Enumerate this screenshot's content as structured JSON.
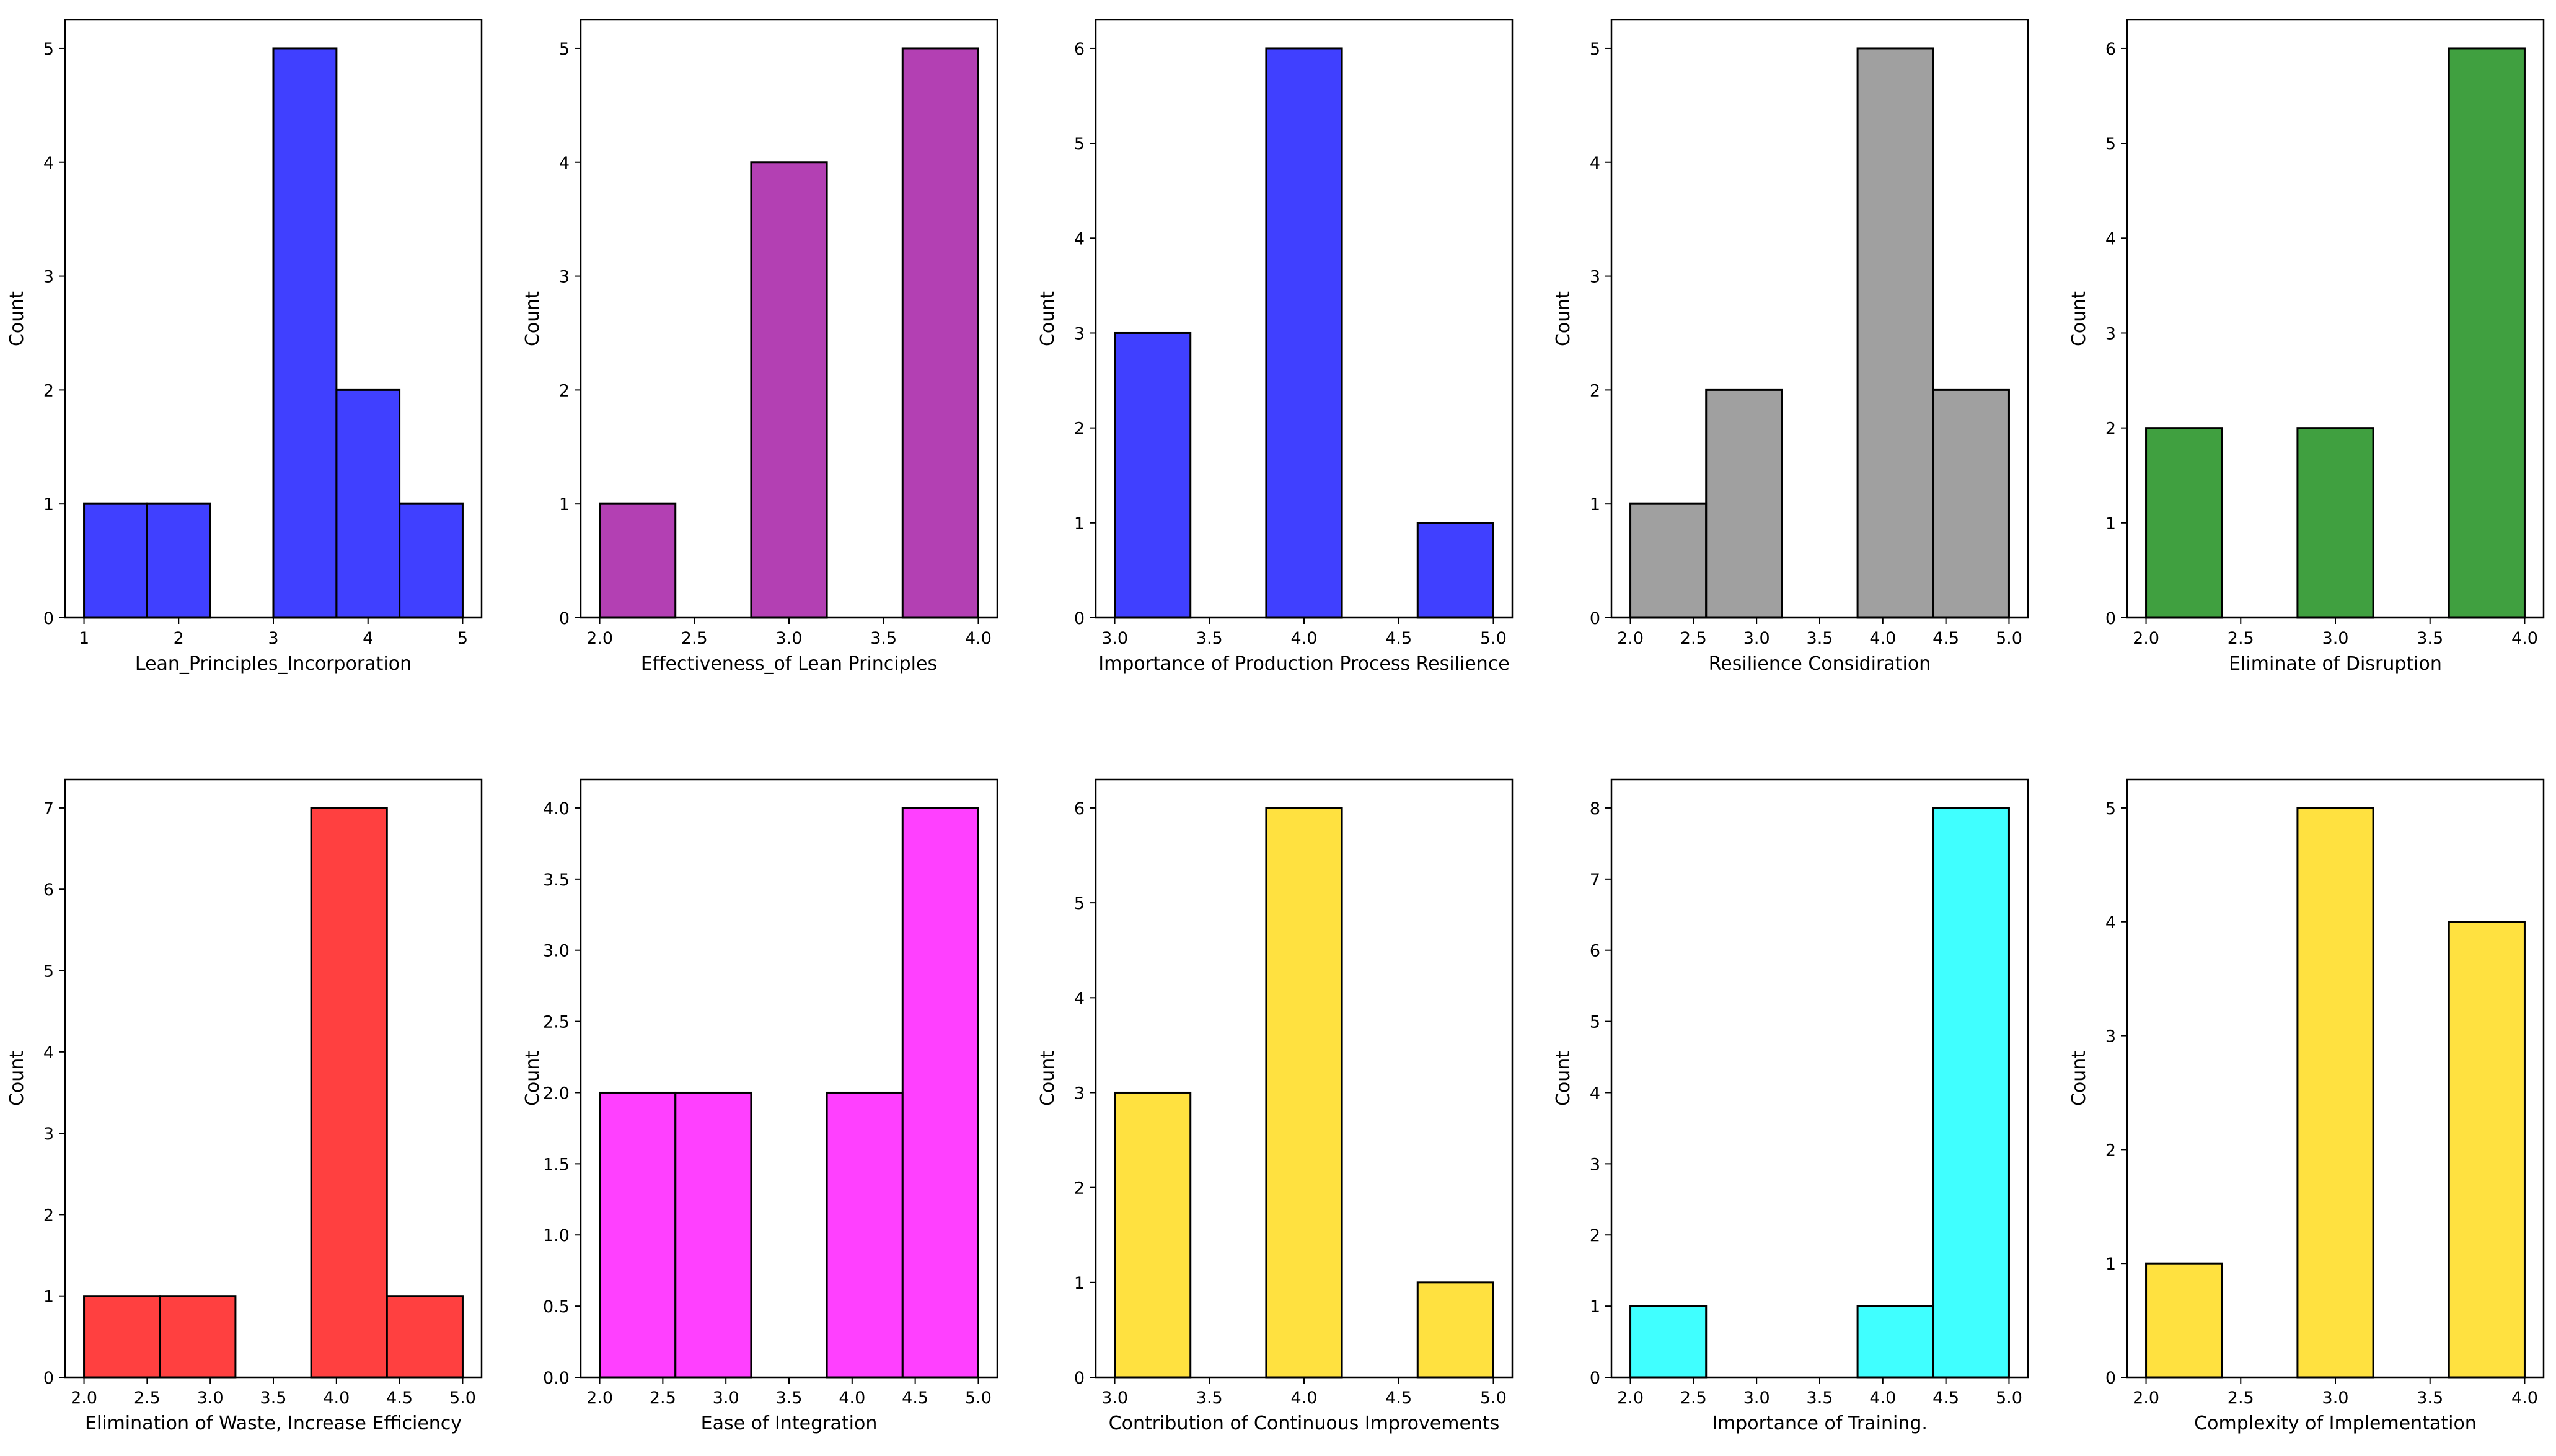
{
  "chart_data": [
    {
      "type": "bar",
      "xlabel": "Lean_Principles_Incorporation",
      "ylabel": "Count",
      "color": "#0000FF",
      "xlim": [
        0.8,
        5.2
      ],
      "ylim": [
        0,
        5.25
      ],
      "xticks": [
        1,
        2,
        3,
        4,
        5
      ],
      "xtick_labels": [
        "1",
        "2",
        "3",
        "4",
        "5"
      ],
      "yticks": [
        0,
        1,
        2,
        3,
        4,
        5
      ],
      "ytick_labels": [
        "0",
        "1",
        "2",
        "3",
        "4",
        "5"
      ],
      "bins": [
        [
          1.0,
          1.667
        ],
        [
          1.667,
          2.333
        ],
        [
          3.0,
          3.667
        ],
        [
          3.667,
          4.333
        ],
        [
          4.333,
          5.0
        ]
      ],
      "values": [
        1,
        1,
        5,
        2,
        1
      ]
    },
    {
      "type": "bar",
      "xlabel": "Effectiveness_of Lean Principles",
      "ylabel": "Count",
      "color": "#990099",
      "xlim": [
        1.9,
        4.1
      ],
      "ylim": [
        0,
        5.25
      ],
      "xticks": [
        2.0,
        2.5,
        3.0,
        3.5,
        4.0
      ],
      "xtick_labels": [
        "2.0",
        "2.5",
        "3.0",
        "3.5",
        "4.0"
      ],
      "yticks": [
        0,
        1,
        2,
        3,
        4,
        5
      ],
      "ytick_labels": [
        "0",
        "1",
        "2",
        "3",
        "4",
        "5"
      ],
      "bins": [
        [
          2.0,
          2.4
        ],
        [
          2.8,
          3.2
        ],
        [
          3.6,
          4.0
        ]
      ],
      "values": [
        1,
        4,
        5
      ]
    },
    {
      "type": "bar",
      "xlabel": "Importance of Production Process Resilience",
      "ylabel": "Count",
      "color": "#0000FF",
      "xlim": [
        2.9,
        5.1
      ],
      "ylim": [
        0,
        6.3
      ],
      "xticks": [
        3.0,
        3.5,
        4.0,
        4.5,
        5.0
      ],
      "xtick_labels": [
        "3.0",
        "3.5",
        "4.0",
        "4.5",
        "5.0"
      ],
      "yticks": [
        0,
        1,
        2,
        3,
        4,
        5,
        6
      ],
      "ytick_labels": [
        "0",
        "1",
        "2",
        "3",
        "4",
        "5",
        "6"
      ],
      "bins": [
        [
          3.0,
          3.4
        ],
        [
          3.8,
          4.2
        ],
        [
          4.6,
          5.0
        ]
      ],
      "values": [
        3,
        6,
        1
      ]
    },
    {
      "type": "bar",
      "xlabel": "Resilience Considiration",
      "ylabel": "Count",
      "color": "#808080",
      "xlim": [
        1.85,
        5.15
      ],
      "ylim": [
        0,
        5.25
      ],
      "xticks": [
        2.0,
        2.5,
        3.0,
        3.5,
        4.0,
        4.5,
        5.0
      ],
      "xtick_labels": [
        "2.0",
        "2.5",
        "3.0",
        "3.5",
        "4.0",
        "4.5",
        "5.0"
      ],
      "yticks": [
        0,
        1,
        2,
        3,
        4,
        5
      ],
      "ytick_labels": [
        "0",
        "1",
        "2",
        "3",
        "4",
        "5"
      ],
      "bins": [
        [
          2.0,
          2.6
        ],
        [
          2.6,
          3.2
        ],
        [
          3.8,
          4.4
        ],
        [
          4.4,
          5.0
        ]
      ],
      "values": [
        1,
        2,
        5,
        2
      ]
    },
    {
      "type": "bar",
      "xlabel": "Eliminate of Disruption",
      "ylabel": "Count",
      "color": "#008000",
      "xlim": [
        1.9,
        4.1
      ],
      "ylim": [
        0,
        6.3
      ],
      "xticks": [
        2.0,
        2.5,
        3.0,
        3.5,
        4.0
      ],
      "xtick_labels": [
        "2.0",
        "2.5",
        "3.0",
        "3.5",
        "4.0"
      ],
      "yticks": [
        0,
        1,
        2,
        3,
        4,
        5,
        6
      ],
      "ytick_labels": [
        "0",
        "1",
        "2",
        "3",
        "4",
        "5",
        "6"
      ],
      "bins": [
        [
          2.0,
          2.4
        ],
        [
          2.8,
          3.2
        ],
        [
          3.6,
          4.0
        ]
      ],
      "values": [
        2,
        2,
        6
      ]
    },
    {
      "type": "bar",
      "xlabel": "Elimination of Waste, Increase Efficiency",
      "ylabel": "Count",
      "color": "#FF0000",
      "xlim": [
        1.85,
        5.15
      ],
      "ylim": [
        0,
        7.35
      ],
      "xticks": [
        2.0,
        2.5,
        3.0,
        3.5,
        4.0,
        4.5,
        5.0
      ],
      "xtick_labels": [
        "2.0",
        "2.5",
        "3.0",
        "3.5",
        "4.0",
        "4.5",
        "5.0"
      ],
      "yticks": [
        0,
        1,
        2,
        3,
        4,
        5,
        6,
        7
      ],
      "ytick_labels": [
        "0",
        "1",
        "2",
        "3",
        "4",
        "5",
        "6",
        "7"
      ],
      "bins": [
        [
          2.0,
          2.6
        ],
        [
          2.6,
          3.2
        ],
        [
          3.8,
          4.4
        ],
        [
          4.4,
          5.0
        ]
      ],
      "values": [
        1,
        1,
        7,
        1
      ]
    },
    {
      "type": "bar",
      "xlabel": "Ease of Integration",
      "ylabel": "Count",
      "color": "#FF00FF",
      "xlim": [
        1.85,
        5.15
      ],
      "ylim": [
        0,
        4.2
      ],
      "xticks": [
        2.0,
        2.5,
        3.0,
        3.5,
        4.0,
        4.5,
        5.0
      ],
      "xtick_labels": [
        "2.0",
        "2.5",
        "3.0",
        "3.5",
        "4.0",
        "4.5",
        "5.0"
      ],
      "yticks": [
        0,
        0.5,
        1,
        1.5,
        2,
        2.5,
        3,
        3.5,
        4
      ],
      "ytick_labels": [
        "0.0",
        "0.5",
        "1.0",
        "1.5",
        "2.0",
        "2.5",
        "3.0",
        "3.5",
        "4.0"
      ],
      "bins": [
        [
          2.0,
          2.6
        ],
        [
          2.6,
          3.2
        ],
        [
          3.8,
          4.4
        ],
        [
          4.4,
          5.0
        ]
      ],
      "values": [
        2,
        2,
        2,
        4
      ]
    },
    {
      "type": "bar",
      "xlabel": "Contribution of Continuous Improvements",
      "ylabel": "Count",
      "color": "#FFD700",
      "xlim": [
        2.9,
        5.1
      ],
      "ylim": [
        0,
        6.3
      ],
      "xticks": [
        3.0,
        3.5,
        4.0,
        4.5,
        5.0
      ],
      "xtick_labels": [
        "3.0",
        "3.5",
        "4.0",
        "4.5",
        "5.0"
      ],
      "yticks": [
        0,
        1,
        2,
        3,
        4,
        5,
        6
      ],
      "ytick_labels": [
        "0",
        "1",
        "2",
        "3",
        "4",
        "5",
        "6"
      ],
      "bins": [
        [
          3.0,
          3.4
        ],
        [
          3.8,
          4.2
        ],
        [
          4.6,
          5.0
        ]
      ],
      "values": [
        3,
        6,
        1
      ]
    },
    {
      "type": "bar",
      "xlabel": "Importance of Training.",
      "ylabel": "Count",
      "color": "#00FFFF",
      "xlim": [
        1.85,
        5.15
      ],
      "ylim": [
        0,
        8.4
      ],
      "xticks": [
        2.0,
        2.5,
        3.0,
        3.5,
        4.0,
        4.5,
        5.0
      ],
      "xtick_labels": [
        "2.0",
        "2.5",
        "3.0",
        "3.5",
        "4.0",
        "4.5",
        "5.0"
      ],
      "yticks": [
        0,
        1,
        2,
        3,
        4,
        5,
        6,
        7,
        8
      ],
      "ytick_labels": [
        "0",
        "1",
        "2",
        "3",
        "4",
        "5",
        "6",
        "7",
        "8"
      ],
      "bins": [
        [
          2.0,
          2.6
        ],
        [
          3.8,
          4.4
        ],
        [
          4.4,
          5.0
        ]
      ],
      "values": [
        1,
        1,
        8
      ]
    },
    {
      "type": "bar",
      "xlabel": "Complexity of Implementation",
      "ylabel": "Count",
      "color": "#FFD700",
      "xlim": [
        1.9,
        4.1
      ],
      "ylim": [
        0,
        5.25
      ],
      "xticks": [
        2.0,
        2.5,
        3.0,
        3.5,
        4.0
      ],
      "xtick_labels": [
        "2.0",
        "2.5",
        "3.0",
        "3.5",
        "4.0"
      ],
      "yticks": [
        0,
        1,
        2,
        3,
        4,
        5
      ],
      "ytick_labels": [
        "0",
        "1",
        "2",
        "3",
        "4",
        "5"
      ],
      "bins": [
        [
          2.0,
          2.4
        ],
        [
          2.8,
          3.2
        ],
        [
          3.6,
          4.0
        ]
      ],
      "values": [
        1,
        5,
        4
      ]
    }
  ]
}
